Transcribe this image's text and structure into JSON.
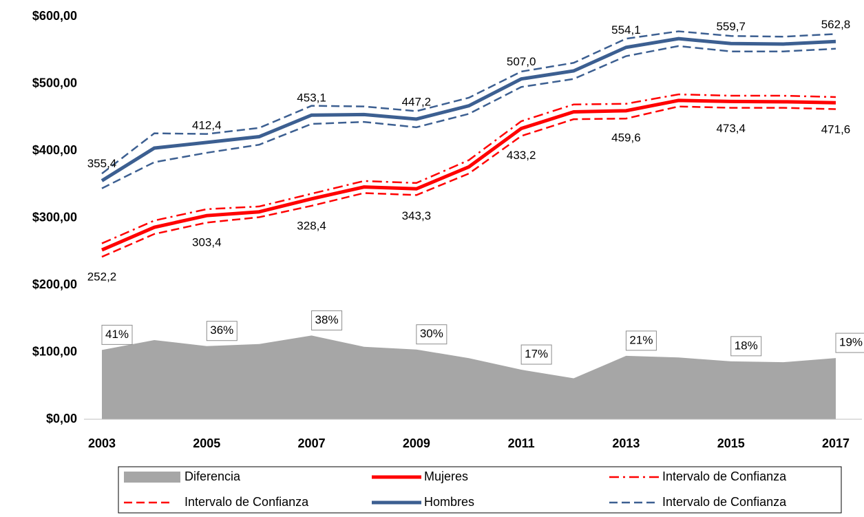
{
  "chart_data": {
    "type": "line",
    "x": [
      2003,
      2004,
      2005,
      2006,
      2007,
      2008,
      2009,
      2010,
      2011,
      2012,
      2013,
      2014,
      2015,
      2016,
      2017
    ],
    "xlim": [
      2003,
      2017
    ],
    "xticks": [
      2003,
      2005,
      2007,
      2009,
      2011,
      2013,
      2015,
      2017
    ],
    "ylim": [
      0,
      600
    ],
    "yticks": [
      {
        "value": 0,
        "label": "$0,00"
      },
      {
        "value": 100,
        "label": "$100,00"
      },
      {
        "value": 200,
        "label": "$200,00"
      },
      {
        "value": 300,
        "label": "$300,00"
      },
      {
        "value": 400,
        "label": "$400,00"
      },
      {
        "value": 500,
        "label": "$500,00"
      },
      {
        "value": 600,
        "label": "$600,00"
      }
    ],
    "grid": false,
    "legend": "bottom",
    "series": [
      {
        "name": "Diferencia",
        "kind": "area",
        "color": "#a6a6a6",
        "values": [
          103.2,
          118,
          109.0,
          112,
          124.7,
          108,
          103.9,
          91,
          73.8,
          61,
          94.5,
          92,
          86.3,
          85,
          91.2
        ],
        "percent": [
          41,
          null,
          36,
          null,
          38,
          null,
          30,
          null,
          17,
          null,
          21,
          null,
          18,
          null,
          19
        ],
        "percent_labels": [
          "41%",
          null,
          "36%",
          null,
          "38%",
          null,
          "30%",
          null,
          "17%",
          null,
          "21%",
          null,
          "18%",
          null,
          "19%"
        ]
      },
      {
        "name": "Mujeres",
        "kind": "solid",
        "color": "#ff0000",
        "values": [
          252.2,
          286,
          303.4,
          309,
          328.4,
          346,
          343.3,
          376,
          433.2,
          458,
          459.6,
          475,
          473.4,
          473,
          471.6
        ],
        "value_labels": [
          "252,2",
          null,
          "303,4",
          null,
          "328,4",
          null,
          "343,3",
          null,
          "433,2",
          null,
          "459,6",
          null,
          "473,4",
          null,
          "471,6"
        ]
      },
      {
        "name": "Intervalo de Confianza",
        "kind": "dashdot",
        "color": "#ff0000",
        "values": [
          262,
          296,
          313,
          317,
          336,
          355,
          352,
          386,
          444,
          469,
          470,
          484,
          482,
          482,
          480
        ]
      },
      {
        "name": "Intervalo de Confianza",
        "kind": "dash",
        "color": "#ff0000",
        "values": [
          242,
          276,
          293,
          301,
          318,
          337,
          334,
          366,
          422,
          447,
          448,
          466,
          464,
          464,
          462
        ]
      },
      {
        "name": "Hombres",
        "kind": "solid",
        "color": "#3c5f91",
        "values": [
          355.4,
          404,
          412.4,
          421,
          453.1,
          454,
          447.2,
          467,
          507.0,
          519,
          554.1,
          567,
          559.7,
          559,
          562.8
        ],
        "value_labels": [
          "355,4",
          null,
          "412,4",
          null,
          "453,1",
          null,
          "447,2",
          null,
          "507,0",
          null,
          "554,1",
          null,
          "559,7",
          null,
          "562,8"
        ]
      },
      {
        "name": "Intervalo de Confianza",
        "kind": "dash",
        "color": "#3c5f91",
        "values": [
          366,
          426,
          425,
          434,
          467,
          466,
          459,
          479,
          518,
          531,
          567,
          578,
          571,
          570,
          574
        ]
      },
      {
        "name": "Intervalo de Confianza",
        "kind": "dash",
        "color": "#3c5f91",
        "in_legend": false,
        "values": [
          344,
          383,
          397,
          409,
          440,
          443,
          435,
          455,
          495,
          507,
          541,
          556,
          548,
          548,
          552
        ]
      }
    ]
  }
}
